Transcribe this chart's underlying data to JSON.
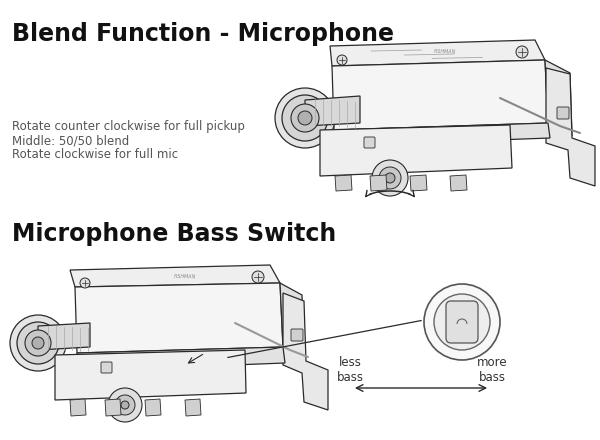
{
  "bg_color": "#ffffff",
  "title1": "Blend Function - Microphone",
  "title2": "Microphone Bass Switch",
  "text_lines": [
    "Rotate counter clockwise for full pickup",
    "Middle: 50/50 blend",
    "Rotate clockwise for full mic"
  ],
  "less_bass": "less\nbass",
  "more_bass": "more\nbass",
  "title_fontsize": 17,
  "body_fontsize": 8.5,
  "label_fontsize": 8.5,
  "line_color": "#2a2a2a",
  "face_color": "#f2f2f2",
  "shadow_color": "#d8d8d8",
  "dark_color": "#888888"
}
